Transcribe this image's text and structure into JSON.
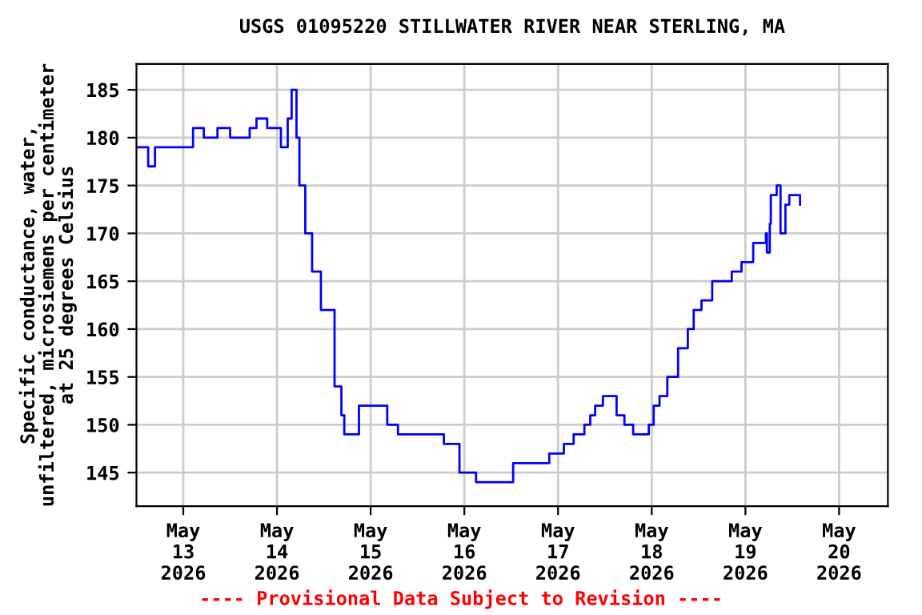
{
  "chart_data": {
    "type": "step",
    "title": "USGS 01095220 STILLWATER RIVER NEAR STERLING, MA",
    "ylabel": "Specific conductance, water,\nunfiltered, microsiemens per centimeter\nat 25 degrees Celsius",
    "annotations": [
      "---- Provisional Data Subject to Revision ----"
    ],
    "series": [
      {
        "color": "#0000ff",
        "x": [
          "2026-05-12T12:15",
          "2026-05-12T15:00",
          "2026-05-12T16:45",
          "2026-05-12T23:45",
          "2026-05-13T02:30",
          "2026-05-13T05:15",
          "2026-05-13T08:45",
          "2026-05-13T12:00",
          "2026-05-13T16:45",
          "2026-05-13T17:00",
          "2026-05-13T18:45",
          "2026-05-13T21:30",
          "2026-05-14T01:00",
          "2026-05-14T02:45",
          "2026-05-14T03:45",
          "2026-05-14T05:00",
          "2026-05-14T05:45",
          "2026-05-14T07:15",
          "2026-05-14T09:00",
          "2026-05-14T11:15",
          "2026-05-14T13:00",
          "2026-05-14T14:45",
          "2026-05-14T16:30",
          "2026-05-14T17:15",
          "2026-05-14T18:45",
          "2026-05-14T21:00",
          "2026-05-15T02:15",
          "2026-05-15T04:15",
          "2026-05-15T07:00",
          "2026-05-15T15:45",
          "2026-05-15T18:45",
          "2026-05-15T22:45",
          "2026-05-16T03:00",
          "2026-05-16T10:00",
          "2026-05-16T12:30",
          "2026-05-16T14:30",
          "2026-05-16T21:15",
          "2026-05-16T21:45",
          "2026-05-17T00:45",
          "2026-05-17T01:30",
          "2026-05-17T04:00",
          "2026-05-17T06:00",
          "2026-05-17T06:45",
          "2026-05-17T08:15",
          "2026-05-17T09:30",
          "2026-05-17T11:30",
          "2026-05-17T13:45",
          "2026-05-17T15:00",
          "2026-05-17T17:00",
          "2026-05-17T19:15",
          "2026-05-17T23:15",
          "2026-05-18T00:30",
          "2026-05-18T02:00",
          "2026-05-18T04:00",
          "2026-05-18T06:45",
          "2026-05-18T09:15",
          "2026-05-18T10:45",
          "2026-05-18T12:45",
          "2026-05-18T15:30",
          "2026-05-18T19:00",
          "2026-05-18T20:30",
          "2026-05-18T23:00",
          "2026-05-19T02:00",
          "2026-05-19T03:45",
          "2026-05-19T05:15",
          "2026-05-19T05:30",
          "2026-05-19T06:15",
          "2026-05-19T06:30",
          "2026-05-19T08:00",
          "2026-05-19T09:00",
          "2026-05-19T10:15",
          "2026-05-19T11:15",
          "2026-05-19T12:45",
          "2026-05-19T14:00"
        ],
        "values": [
          179,
          177,
          179,
          179,
          181,
          180,
          181,
          180,
          180,
          181,
          182,
          181,
          179,
          182,
          185,
          180,
          175,
          170,
          166,
          162,
          162,
          154,
          151,
          149,
          149,
          152,
          152,
          150,
          149,
          149,
          148,
          145,
          144,
          144,
          146,
          146,
          146,
          147,
          147,
          148,
          149,
          149,
          150,
          151,
          152,
          153,
          153,
          151,
          150,
          149,
          150,
          152,
          153,
          155,
          158,
          160,
          162,
          163,
          165,
          165,
          166,
          167,
          169,
          169,
          170,
          168,
          171,
          174,
          175,
          170,
          173,
          174,
          174,
          173
        ]
      }
    ],
    "xlim": [
      "2026-05-12T12:00",
      "2026-05-20T12:30"
    ],
    "xticks": [
      {
        "value": "2026-05-13",
        "label": "May\n13\n2026"
      },
      {
        "value": "2026-05-14",
        "label": "May\n14\n2026"
      },
      {
        "value": "2026-05-15",
        "label": "May\n15\n2026"
      },
      {
        "value": "2026-05-16",
        "label": "May\n16\n2026"
      },
      {
        "value": "2026-05-17",
        "label": "May\n17\n2026"
      },
      {
        "value": "2026-05-18",
        "label": "May\n18\n2026"
      },
      {
        "value": "2026-05-19",
        "label": "May\n19\n2026"
      },
      {
        "value": "2026-05-20",
        "label": "May\n20\n2026"
      }
    ],
    "ylim": [
      141.5,
      187.7
    ],
    "yticks": [
      145,
      150,
      155,
      160,
      165,
      170,
      175,
      180,
      185
    ],
    "grid": true
  }
}
